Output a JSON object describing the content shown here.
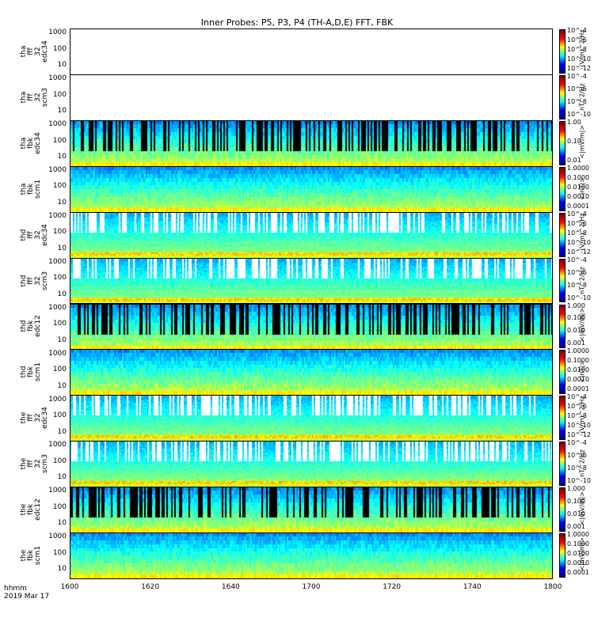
{
  "title": "Inner Probes: P5, P3, P4 (TH-A,D,E) FFT, FBK",
  "footer": {
    "time_label": "hhmm",
    "date_label": "2019 Mar 17"
  },
  "chart_data": {
    "type": "heatmap",
    "title": "Inner Probes: P5, P3, P4 (TH-A,D,E) FFT, FBK",
    "xlabel": "hhmm",
    "xticks": [
      "1600",
      "1620",
      "1640",
      "1700",
      "1720",
      "1740",
      "1800"
    ],
    "xlim": [
      "16:00",
      "18:00"
    ],
    "yscale": "log",
    "yticks": [
      "10",
      "100",
      "1000"
    ],
    "panels": [
      {
        "label": [
          "tha",
          "fff",
          "32",
          "edc34"
        ],
        "data_present": false,
        "zscale": "log",
        "cbar_ticks": [
          "10^-4",
          "10^-6",
          "10^-8",
          "10^-10",
          "10^-12"
        ],
        "cbar_unit": "(V/m)^2/Hz"
      },
      {
        "label": [
          "tha",
          "fff",
          "32",
          "scm3"
        ],
        "data_present": false,
        "zscale": "log",
        "cbar_ticks": [
          "10^-4",
          "10^-6",
          "10^-8",
          "10^-10"
        ],
        "cbar_unit": "nT^2/Hz"
      },
      {
        "label": [
          "tha",
          "fbk",
          "edc34"
        ],
        "data_present": true,
        "zscale": "log",
        "cbar_ticks": [
          "1.00",
          "0.10",
          "0.01"
        ],
        "cbar_unit": "<|mV/m|>"
      },
      {
        "label": [
          "tha",
          "fbk",
          "scm1"
        ],
        "data_present": true,
        "zscale": "log",
        "cbar_ticks": [
          "1.0000",
          "0.1000",
          "0.0100",
          "0.0010",
          "0.0001"
        ],
        "cbar_unit": "<|nT|>"
      },
      {
        "label": [
          "thd",
          "fff",
          "32",
          "edc34"
        ],
        "data_present": true,
        "zscale": "log",
        "cbar_ticks": [
          "10^-4",
          "10^-6",
          "10^-8",
          "10^-10",
          "10^-12"
        ],
        "cbar_unit": "(V/m)^2/Hz"
      },
      {
        "label": [
          "thd",
          "fff",
          "32",
          "scm3"
        ],
        "data_present": true,
        "zscale": "log",
        "cbar_ticks": [
          "10^-4",
          "10^-6",
          "10^-8",
          "10^-10"
        ],
        "cbar_unit": "nT^2/Hz"
      },
      {
        "label": [
          "thd",
          "fbk",
          "edc12"
        ],
        "data_present": true,
        "zscale": "log",
        "cbar_ticks": [
          "1.000",
          "0.100",
          "0.010",
          "0.001"
        ],
        "cbar_unit": "<|mV/m|>"
      },
      {
        "label": [
          "thd",
          "fbk",
          "scm1"
        ],
        "data_present": true,
        "zscale": "log",
        "cbar_ticks": [
          "1.0000",
          "0.1000",
          "0.0100",
          "0.0010",
          "0.0001"
        ],
        "cbar_unit": "<|nT|>"
      },
      {
        "label": [
          "the",
          "fff",
          "32",
          "edc34"
        ],
        "data_present": true,
        "zscale": "log",
        "cbar_ticks": [
          "10^-4",
          "10^-6",
          "10^-8",
          "10^-10",
          "10^-12"
        ],
        "cbar_unit": "(V/m)^2/Hz"
      },
      {
        "label": [
          "the",
          "fff",
          "32",
          "scm3"
        ],
        "data_present": true,
        "zscale": "log",
        "cbar_ticks": [
          "10^-4",
          "10^-6",
          "10^-8",
          "10^-10"
        ],
        "cbar_unit": "nT^2/Hz"
      },
      {
        "label": [
          "the",
          "fbk",
          "edc12"
        ],
        "data_present": true,
        "zscale": "log",
        "cbar_ticks": [
          "1.000",
          "0.100",
          "0.010",
          "0.001"
        ],
        "cbar_unit": "<|mV/m|>"
      },
      {
        "label": [
          "the",
          "fbk",
          "scm1"
        ],
        "data_present": true,
        "zscale": "log",
        "cbar_ticks": [
          "1.0000",
          "0.1000",
          "0.0100",
          "0.0010",
          "0.0001"
        ],
        "cbar_unit": "<|mV/m|>"
      }
    ]
  }
}
